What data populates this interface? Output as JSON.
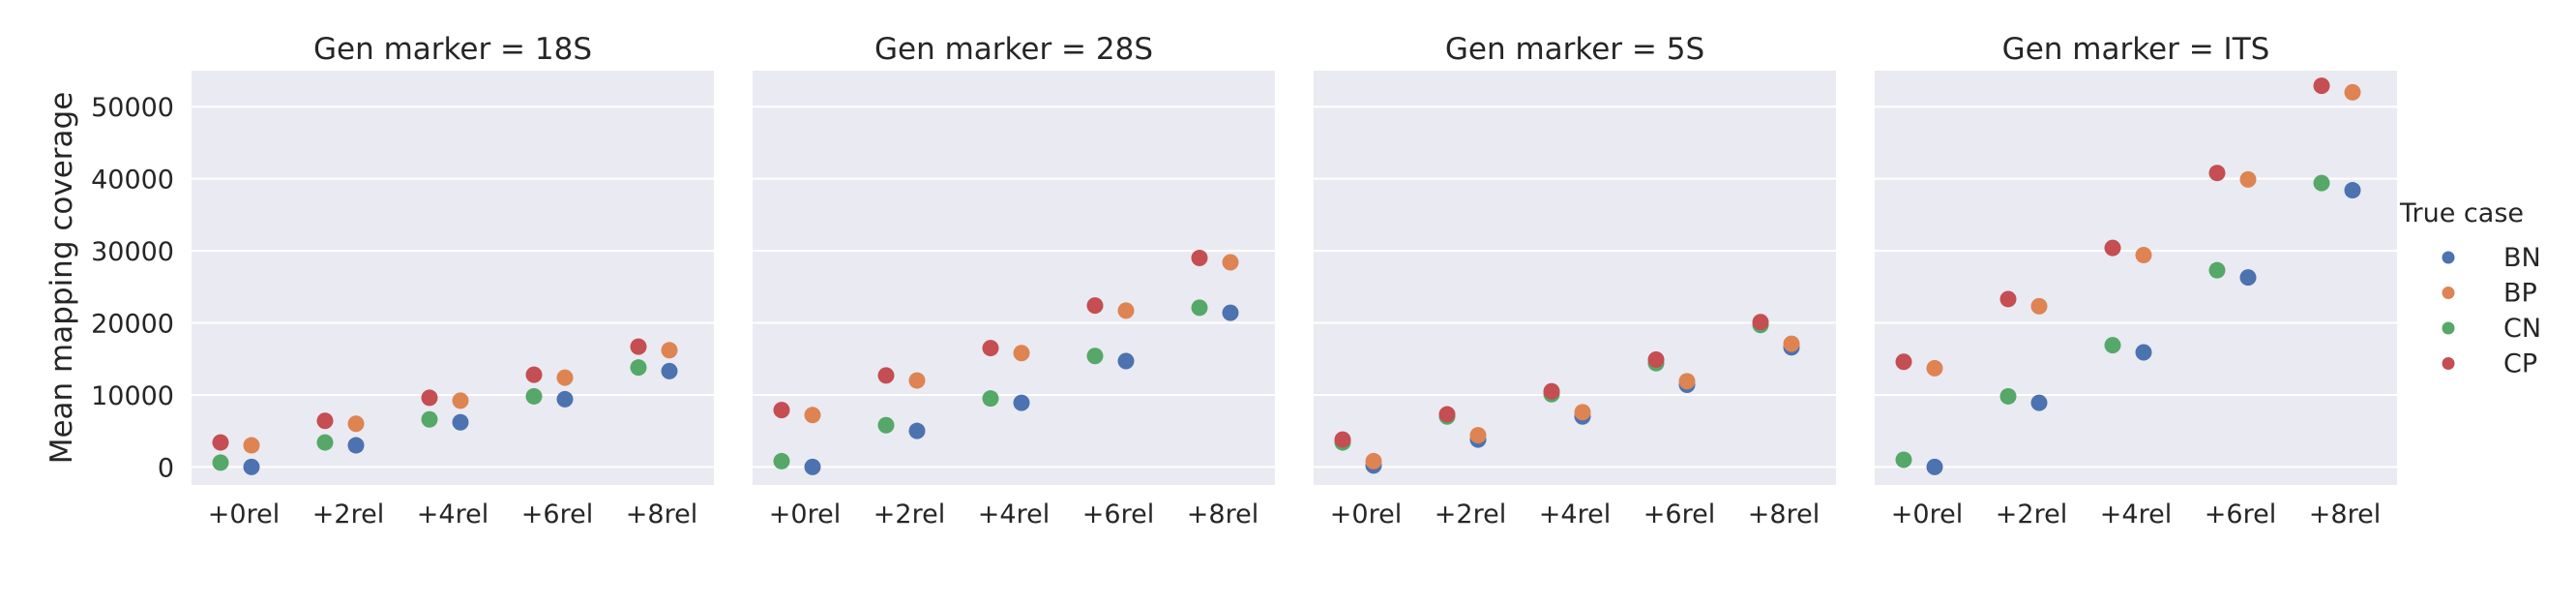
{
  "chart_data": {
    "type": "scatter",
    "ylabel": "Mean mapping coverage",
    "ylim": [
      -2500,
      55000
    ],
    "yticks": [
      "0",
      "10000",
      "20000",
      "30000",
      "40000",
      "50000"
    ],
    "ytick_values": [
      0,
      10000,
      20000,
      30000,
      40000,
      50000
    ],
    "grid": true,
    "categories": [
      "+0rel",
      "+2rel",
      "+4rel",
      "+6rel",
      "+8rel"
    ],
    "legend": {
      "title": "True case",
      "placement": "right",
      "entries": [
        {
          "name": "BN",
          "color": "#4c72b0"
        },
        {
          "name": "BP",
          "color": "#dd8452"
        },
        {
          "name": "CN",
          "color": "#55a868"
        },
        {
          "name": "CP",
          "color": "#c44e52"
        }
      ]
    },
    "facets": [
      {
        "title": "Gen marker = 18S",
        "series": [
          {
            "name": "BN",
            "values": [
              0,
              3000,
              6200,
              9400,
              13300
            ]
          },
          {
            "name": "BP",
            "values": [
              3000,
              6000,
              9200,
              12400,
              16200
            ]
          },
          {
            "name": "CN",
            "values": [
              600,
              3400,
              6600,
              9800,
              13800
            ]
          },
          {
            "name": "CP",
            "values": [
              3400,
              6400,
              9600,
              12800,
              16700
            ]
          }
        ]
      },
      {
        "title": "Gen marker = 28S",
        "series": [
          {
            "name": "BN",
            "values": [
              0,
              5000,
              8900,
              14700,
              21400
            ]
          },
          {
            "name": "BP",
            "values": [
              7200,
              12000,
              15800,
              21700,
              28400
            ]
          },
          {
            "name": "CN",
            "values": [
              800,
              5800,
              9500,
              15400,
              22100
            ]
          },
          {
            "name": "CP",
            "values": [
              7900,
              12700,
              16500,
              22400,
              29000
            ]
          }
        ]
      },
      {
        "title": "Gen marker = 5S",
        "series": [
          {
            "name": "BN",
            "values": [
              200,
              3800,
              7000,
              11400,
              16600
            ]
          },
          {
            "name": "BP",
            "values": [
              800,
              4400,
              7600,
              11900,
              17100
            ]
          },
          {
            "name": "CN",
            "values": [
              3400,
              7000,
              10100,
              14400,
              19700
            ]
          },
          {
            "name": "CP",
            "values": [
              3800,
              7300,
              10500,
              14900,
              20100
            ]
          }
        ]
      },
      {
        "title": "Gen marker = ITS",
        "series": [
          {
            "name": "BN",
            "values": [
              0,
              8900,
              15900,
              26300,
              38400
            ]
          },
          {
            "name": "BP",
            "values": [
              13700,
              22300,
              29400,
              39900,
              52000
            ]
          },
          {
            "name": "CN",
            "values": [
              1000,
              9800,
              16900,
              27300,
              39400
            ]
          },
          {
            "name": "CP",
            "values": [
              14600,
              23300,
              30400,
              40800,
              52900
            ]
          }
        ]
      }
    ]
  }
}
